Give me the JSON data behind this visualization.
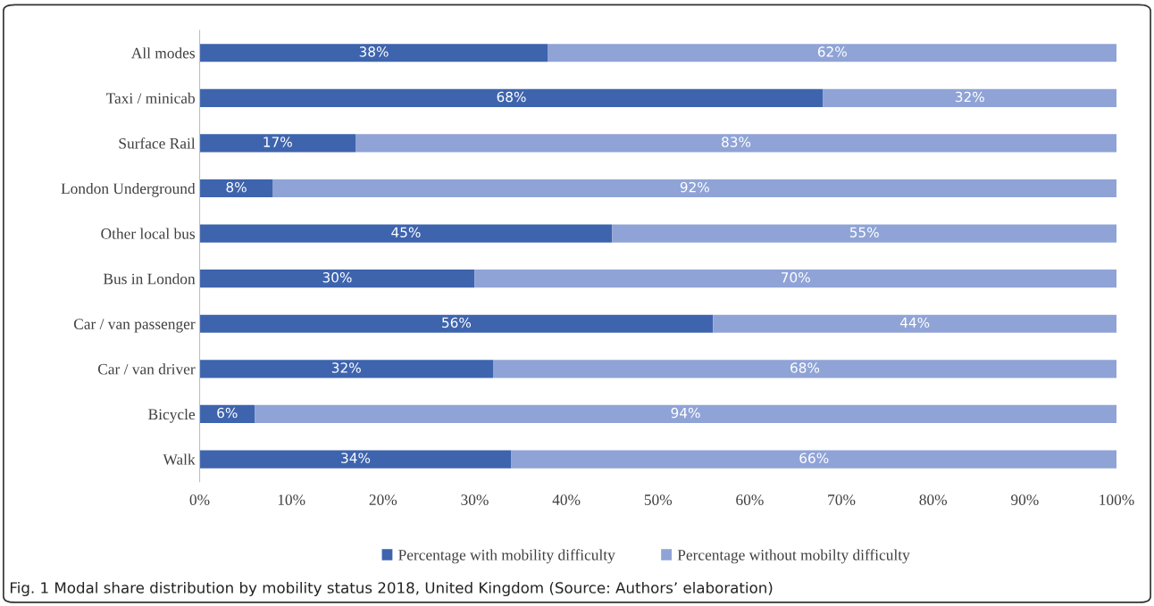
{
  "chart_data": {
    "type": "bar",
    "orientation": "horizontal",
    "stacked": true,
    "categories": [
      "All modes",
      "Taxi / minicab",
      "Surface Rail",
      "London Underground",
      "Other local bus",
      "Bus in London",
      "Car / van passenger",
      "Car / van driver",
      "Bicycle",
      "Walk"
    ],
    "series": [
      {
        "name": "Percentage with mobility difficulty",
        "color": "#3e64ae",
        "values": [
          38,
          68,
          17,
          8,
          45,
          30,
          56,
          32,
          6,
          34
        ],
        "value_labels": [
          "38%",
          "68%",
          "17%",
          "8%",
          "45%",
          "30%",
          "56%",
          "32%",
          "6%",
          "34%"
        ]
      },
      {
        "name": "Percentage without mobilty difficulty",
        "color": "#8fa3d6",
        "values": [
          62,
          32,
          83,
          92,
          55,
          70,
          44,
          68,
          94,
          66
        ],
        "value_labels": [
          "62%",
          "32%",
          "83%",
          "92%",
          "55%",
          "70%",
          "44%",
          "68%",
          "94%",
          "66%"
        ]
      }
    ],
    "xlim": [
      0,
      100
    ],
    "xticks": [
      {
        "value": 0,
        "label": "0%"
      },
      {
        "value": 10,
        "label": "10%"
      },
      {
        "value": 20,
        "label": "20%"
      },
      {
        "value": 30,
        "label": "30%"
      },
      {
        "value": 40,
        "label": "40%"
      },
      {
        "value": 50,
        "label": "50%"
      },
      {
        "value": 60,
        "label": "60%"
      },
      {
        "value": 70,
        "label": "70%"
      },
      {
        "value": 80,
        "label": "80%"
      },
      {
        "value": 90,
        "label": "90%"
      },
      {
        "value": 100,
        "label": "100%"
      }
    ],
    "legend": "bottom",
    "grid": false,
    "annotations": [
      "Fig. 1 Modal share distribution by mobility status 2018, United Kingdom (Source: Authors’ elaboration)"
    ]
  }
}
